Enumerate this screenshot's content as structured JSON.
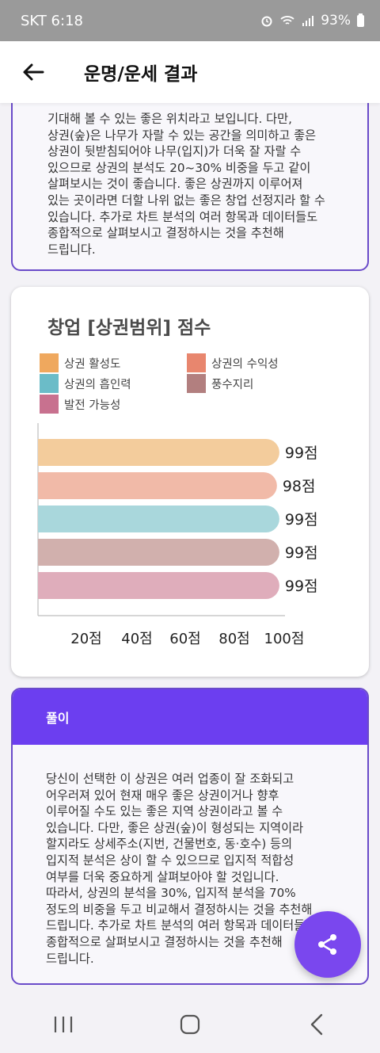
{
  "status_bar": {
    "carrier_time": "SKT  6:18",
    "battery": "93%",
    "icons": [
      "alarm-icon",
      "wifi-icon",
      "signal-icon",
      "battery-icon"
    ]
  },
  "header": {
    "title": "운명/운세 결과",
    "back_icon": "arrow-left-icon"
  },
  "summary_card": {
    "text": "기대해 볼 수 있는 좋은 위치라고 보입니다. 다만,\n상권(숲)은 나무가 자랄 수 있는 공간을 의미하고 좋은\n상권이 뒷받침되어야 나무(입지)가 더욱 잘 자랄 수\n있으므로 상권의 분석도 20~30% 비중을 두고 같이\n살펴보시는 것이 좋습니다. 좋은 상권까지 이루어져\n있는 곳이라면 더할 나위 없는 좋은 창업 선정지라 할 수\n있습니다. 추가로 차트 분석의 여러 항목과 데이터들도\n종합적으로 살펴보시고 결정하시는 것을 추천해\n드립니다."
  },
  "chart_data": {
    "type": "bar",
    "orientation": "horizontal",
    "title": "창업 [상권범위] 점수",
    "categories": [
      "상권 활성도",
      "상권의 수익성",
      "상권의 흡인력",
      "풍수지리",
      "발전 가능성"
    ],
    "values": [
      99,
      98,
      99,
      99,
      99
    ],
    "value_labels": [
      "99점",
      "98점",
      "99점",
      "99점",
      "99점"
    ],
    "colors": [
      "#f3cc9c",
      "#f1baa8",
      "#a9d7dc",
      "#d1b0ad",
      "#dfadbb"
    ],
    "legend_colors": [
      "#efa85e",
      "#e8866e",
      "#6bbcc8",
      "#b27f7f",
      "#c8718f"
    ],
    "legend_placement": "top",
    "x_ticks": [
      "20점",
      "40점",
      "60점",
      "80점",
      "100점"
    ],
    "xlim": [
      0,
      100
    ],
    "grid": false
  },
  "explanation": {
    "heading": "풀이",
    "text": "당신이 선택한 이 상권은 여러 업종이 잘 조화되고\n어우러져 있어 현재 매우 좋은 상권이거나 향후\n이루어질 수도 있는 좋은 지역 상권이라고 볼 수\n있습니다. 다만, 좋은 상권(숲)이 형성되는 지역이라\n할지라도 상세주소(지번, 건물번호, 동·호수) 등의\n입지적 분석은 상이 할 수 있으므로 입지적 적합성\n여부를 더욱 중요하게 살펴보아야 할 것입니다.\n따라서, 상권의 분석을 30%, 입지적 분석을 70%\n정도의 비중을 두고 비교해서 결정하시는 것을 추천해\n드립니다. 추가로 차트 분석의 여러 항목과 데이터들도\n종합적으로 살펴보시고 결정하시는 것을 추천해\n드립니다."
  },
  "fab": {
    "icon": "share-icon"
  },
  "nav": {
    "icons": [
      "recent-apps-icon",
      "home-icon",
      "back-nav-icon"
    ]
  }
}
